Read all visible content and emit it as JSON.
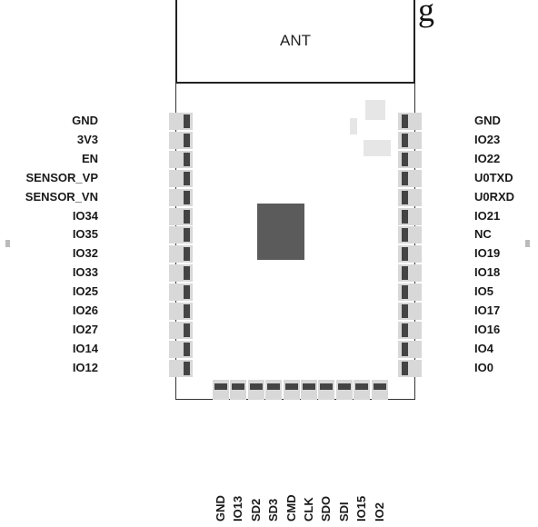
{
  "header_fragment": "g",
  "antenna_label": "ANT",
  "left_pins": [
    "GND",
    "3V3",
    "EN",
    "SENSOR_VP",
    "SENSOR_VN",
    "IO34",
    "IO35",
    "IO32",
    "IO33",
    "IO25",
    "IO26",
    "IO27",
    "IO14",
    "IO12"
  ],
  "right_pins": [
    "GND",
    "IO23",
    "IO22",
    "U0TXD",
    "U0RXD",
    "IO21",
    "NC",
    "IO19",
    "IO18",
    "IO5",
    "IO17",
    "IO16",
    "IO4",
    "IO0"
  ],
  "bottom_pins": [
    "GND",
    "IO13",
    "SD2",
    "SD3",
    "CMD",
    "CLK",
    "SDO",
    "SDI",
    "IO15",
    "IO2"
  ],
  "colors": {
    "pad": "#444444",
    "pad_shadow": "#d8d8d8",
    "chip": "#5b5b5b",
    "outline": "#222222"
  }
}
